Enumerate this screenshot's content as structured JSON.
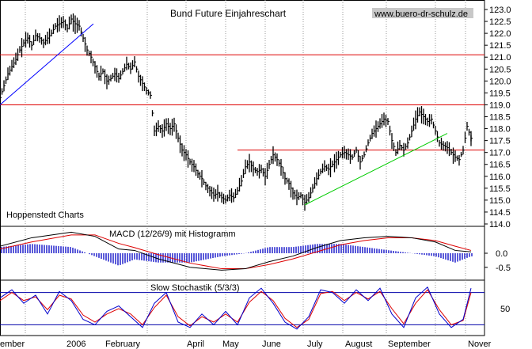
{
  "chart_data": [
    {
      "type": "ohlc",
      "title": "Bund Future Einjahreschart",
      "watermark": "www.buero-dr-schulz.de",
      "source_label": "Hoppenstedt Charts",
      "ylim": [
        114.0,
        123.0
      ],
      "y_ticks": [
        "123.0",
        "122.5",
        "122.0",
        "121.5",
        "121.0",
        "120.5",
        "120.0",
        "119.5",
        "119.0",
        "118.5",
        "118.0",
        "117.5",
        "117.0",
        "116.5",
        "116.0",
        "115.5",
        "115.0",
        "114.5",
        "114.0"
      ],
      "x_labels": [
        "ember",
        "2006",
        "February",
        "April",
        "May",
        "June",
        "July",
        "August",
        "September",
        "Nover"
      ],
      "close_path": [
        [
          0,
          119.3
        ],
        [
          5,
          119.8
        ],
        [
          10,
          120.3
        ],
        [
          15,
          120.6
        ],
        [
          20,
          120.9
        ],
        [
          25,
          121.3
        ],
        [
          30,
          121.6
        ],
        [
          35,
          121.8
        ],
        [
          40,
          121.5
        ],
        [
          45,
          121.9
        ],
        [
          50,
          121.8
        ],
        [
          55,
          121.6
        ],
        [
          60,
          121.8
        ],
        [
          65,
          122.0
        ],
        [
          70,
          122.3
        ],
        [
          75,
          122.4
        ],
        [
          80,
          122.5
        ],
        [
          85,
          122.2
        ],
        [
          90,
          122.6
        ],
        [
          95,
          122.4
        ],
        [
          100,
          122.3
        ],
        [
          105,
          121.8
        ],
        [
          110,
          121.3
        ],
        [
          115,
          121.0
        ],
        [
          120,
          120.6
        ],
        [
          125,
          120.2
        ],
        [
          130,
          120.4
        ],
        [
          135,
          120.0
        ],
        [
          140,
          120.1
        ],
        [
          145,
          120.3
        ],
        [
          150,
          120.1
        ],
        [
          155,
          120.4
        ],
        [
          160,
          120.7
        ],
        [
          165,
          120.5
        ],
        [
          170,
          120.8
        ],
        [
          175,
          120.2
        ],
        [
          180,
          119.9
        ],
        [
          185,
          119.6
        ],
        [
          190,
          119.4
        ],
        [
          195,
          117.9
        ],
        [
          200,
          118.1
        ],
        [
          205,
          117.9
        ],
        [
          210,
          118.2
        ],
        [
          215,
          118.0
        ],
        [
          220,
          118.2
        ],
        [
          225,
          117.6
        ],
        [
          230,
          117.1
        ],
        [
          235,
          116.9
        ],
        [
          240,
          116.6
        ],
        [
          245,
          116.4
        ],
        [
          250,
          116.1
        ],
        [
          255,
          115.9
        ],
        [
          260,
          115.6
        ],
        [
          265,
          115.4
        ],
        [
          270,
          115.2
        ],
        [
          275,
          115.3
        ],
        [
          280,
          115.1
        ],
        [
          285,
          115.0
        ],
        [
          290,
          115.2
        ],
        [
          295,
          115.1
        ],
        [
          300,
          115.4
        ],
        [
          305,
          115.8
        ],
        [
          310,
          116.4
        ],
        [
          315,
          116.6
        ],
        [
          320,
          116.3
        ],
        [
          325,
          116.2
        ],
        [
          330,
          116.3
        ],
        [
          335,
          116.0
        ],
        [
          340,
          116.5
        ],
        [
          345,
          116.9
        ],
        [
          350,
          116.7
        ],
        [
          355,
          116.4
        ],
        [
          360,
          115.9
        ],
        [
          365,
          115.7
        ],
        [
          370,
          115.3
        ],
        [
          375,
          115.1
        ],
        [
          380,
          115.2
        ],
        [
          385,
          114.9
        ],
        [
          390,
          115.1
        ],
        [
          395,
          115.5
        ],
        [
          400,
          115.9
        ],
        [
          405,
          116.2
        ],
        [
          410,
          116.4
        ],
        [
          415,
          116.3
        ],
        [
          420,
          116.5
        ],
        [
          425,
          116.7
        ],
        [
          430,
          116.9
        ],
        [
          435,
          117.0
        ],
        [
          440,
          116.9
        ],
        [
          445,
          116.8
        ],
        [
          450,
          117.1
        ],
        [
          455,
          116.6
        ],
        [
          460,
          116.9
        ],
        [
          465,
          117.4
        ],
        [
          470,
          117.8
        ],
        [
          475,
          118.0
        ],
        [
          480,
          118.2
        ],
        [
          485,
          118.4
        ],
        [
          490,
          118.3
        ],
        [
          495,
          117.5
        ],
        [
          500,
          117.0
        ],
        [
          505,
          117.3
        ],
        [
          510,
          117.1
        ],
        [
          515,
          117.4
        ],
        [
          520,
          117.9
        ],
        [
          525,
          118.4
        ],
        [
          530,
          118.7
        ],
        [
          535,
          118.5
        ],
        [
          540,
          118.3
        ],
        [
          545,
          118.4
        ],
        [
          550,
          117.9
        ],
        [
          555,
          117.4
        ],
        [
          560,
          117.3
        ],
        [
          565,
          117.2
        ],
        [
          570,
          117.0
        ],
        [
          575,
          116.8
        ],
        [
          580,
          116.7
        ],
        [
          585,
          117.1
        ],
        [
          590,
          118.1
        ],
        [
          595,
          117.6
        ]
      ],
      "horizontal_lines": [
        121.1,
        119.0,
        117.1
      ],
      "trendlines": [
        {
          "color": "#0000ff",
          "from": [
            0,
            119.0
          ],
          "to": [
            118,
            122.4
          ]
        },
        {
          "color": "#00cc00",
          "from": [
            385,
            114.8
          ],
          "to": [
            565,
            117.8
          ]
        }
      ]
    },
    {
      "type": "macd",
      "title": "MACD (12/26/9) mit Histogramm",
      "y_ticks": [
        "0.0",
        "-0.5"
      ],
      "ylim": [
        -0.9,
        0.9
      ],
      "macd": [
        [
          0,
          0.25
        ],
        [
          40,
          0.55
        ],
        [
          90,
          0.75
        ],
        [
          120,
          0.6
        ],
        [
          150,
          0.15
        ],
        [
          170,
          0.1
        ],
        [
          200,
          -0.2
        ],
        [
          240,
          -0.5
        ],
        [
          280,
          -0.6
        ],
        [
          310,
          -0.55
        ],
        [
          340,
          -0.3
        ],
        [
          370,
          -0.1
        ],
        [
          400,
          0.2
        ],
        [
          430,
          0.45
        ],
        [
          460,
          0.55
        ],
        [
          490,
          0.6
        ],
        [
          520,
          0.55
        ],
        [
          550,
          0.4
        ],
        [
          575,
          0.1
        ],
        [
          595,
          0.05
        ]
      ],
      "signal": [
        [
          0,
          0.15
        ],
        [
          40,
          0.4
        ],
        [
          90,
          0.65
        ],
        [
          120,
          0.65
        ],
        [
          150,
          0.35
        ],
        [
          170,
          0.2
        ],
        [
          200,
          -0.05
        ],
        [
          240,
          -0.35
        ],
        [
          280,
          -0.55
        ],
        [
          310,
          -0.55
        ],
        [
          340,
          -0.4
        ],
        [
          370,
          -0.2
        ],
        [
          400,
          0.05
        ],
        [
          430,
          0.3
        ],
        [
          460,
          0.45
        ],
        [
          490,
          0.55
        ],
        [
          520,
          0.55
        ],
        [
          550,
          0.45
        ],
        [
          575,
          0.25
        ],
        [
          595,
          0.1
        ]
      ]
    },
    {
      "type": "stochastic",
      "title": "Slow Stochastik (5/3/3)",
      "y_ticks": [
        "50"
      ],
      "ylim": [
        0,
        100
      ],
      "bands": [
        80,
        20
      ],
      "k": [
        [
          0,
          70
        ],
        [
          15,
          85
        ],
        [
          30,
          60
        ],
        [
          45,
          75
        ],
        [
          60,
          40
        ],
        [
          75,
          82
        ],
        [
          90,
          65
        ],
        [
          105,
          30
        ],
        [
          120,
          20
        ],
        [
          135,
          45
        ],
        [
          150,
          55
        ],
        [
          165,
          35
        ],
        [
          180,
          15
        ],
        [
          195,
          60
        ],
        [
          210,
          80
        ],
        [
          225,
          25
        ],
        [
          240,
          15
        ],
        [
          255,
          40
        ],
        [
          270,
          20
        ],
        [
          285,
          45
        ],
        [
          300,
          20
        ],
        [
          315,
          70
        ],
        [
          330,
          88
        ],
        [
          345,
          60
        ],
        [
          360,
          25
        ],
        [
          375,
          12
        ],
        [
          390,
          35
        ],
        [
          405,
          85
        ],
        [
          420,
          80
        ],
        [
          435,
          60
        ],
        [
          450,
          85
        ],
        [
          465,
          65
        ],
        [
          480,
          88
        ],
        [
          495,
          40
        ],
        [
          510,
          15
        ],
        [
          525,
          70
        ],
        [
          540,
          90
        ],
        [
          555,
          40
        ],
        [
          570,
          15
        ],
        [
          585,
          30
        ],
        [
          595,
          88
        ]
      ],
      "d": [
        [
          0,
          65
        ],
        [
          15,
          80
        ],
        [
          30,
          65
        ],
        [
          45,
          72
        ],
        [
          60,
          48
        ],
        [
          75,
          75
        ],
        [
          90,
          68
        ],
        [
          105,
          38
        ],
        [
          120,
          25
        ],
        [
          135,
          40
        ],
        [
          150,
          50
        ],
        [
          165,
          40
        ],
        [
          180,
          20
        ],
        [
          195,
          52
        ],
        [
          210,
          75
        ],
        [
          225,
          35
        ],
        [
          240,
          18
        ],
        [
          255,
          35
        ],
        [
          270,
          25
        ],
        [
          285,
          40
        ],
        [
          300,
          25
        ],
        [
          315,
          62
        ],
        [
          330,
          82
        ],
        [
          345,
          65
        ],
        [
          360,
          32
        ],
        [
          375,
          15
        ],
        [
          390,
          30
        ],
        [
          405,
          78
        ],
        [
          420,
          82
        ],
        [
          435,
          65
        ],
        [
          450,
          80
        ],
        [
          465,
          68
        ],
        [
          480,
          82
        ],
        [
          495,
          50
        ],
        [
          510,
          22
        ],
        [
          525,
          60
        ],
        [
          540,
          85
        ],
        [
          555,
          48
        ],
        [
          570,
          20
        ],
        [
          585,
          28
        ],
        [
          595,
          80
        ]
      ]
    }
  ],
  "colors": {
    "ohlc": "#000000",
    "hline": "#dd0000",
    "macd_line": "#000000",
    "signal_line": "#dd0000",
    "hist": "#2222cc",
    "stoch_k": "#0000cc",
    "stoch_d": "#dd0000"
  }
}
